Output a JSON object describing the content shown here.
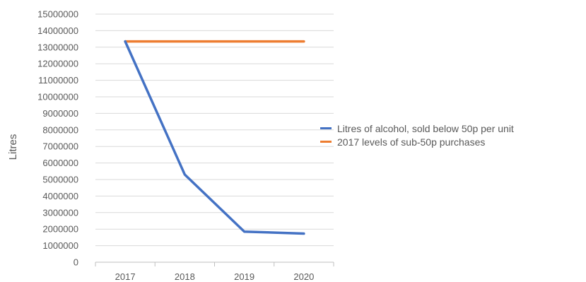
{
  "chart_data": {
    "type": "line",
    "categories": [
      "2017",
      "2018",
      "2019",
      "2020"
    ],
    "ylabel": "Litres",
    "ylim": [
      0,
      15000000
    ],
    "ytick_step": 1000000,
    "yticks": [
      "0",
      "1000000",
      "2000000",
      "3000000",
      "4000000",
      "5000000",
      "6000000",
      "7000000",
      "8000000",
      "9000000",
      "10000000",
      "11000000",
      "12000000",
      "13000000",
      "14000000",
      "15000000"
    ],
    "grid": true,
    "legend_position": "right",
    "series": [
      {
        "name": "Litres of alcohol, sold below 50p per unit",
        "color": "#4472C4",
        "values": [
          13350000,
          5300000,
          1850000,
          1730000
        ]
      },
      {
        "name": "2017 levels of sub-50p purchases",
        "color": "#ED7D31",
        "values": [
          13350000,
          13350000,
          13350000,
          13350000
        ]
      }
    ]
  }
}
